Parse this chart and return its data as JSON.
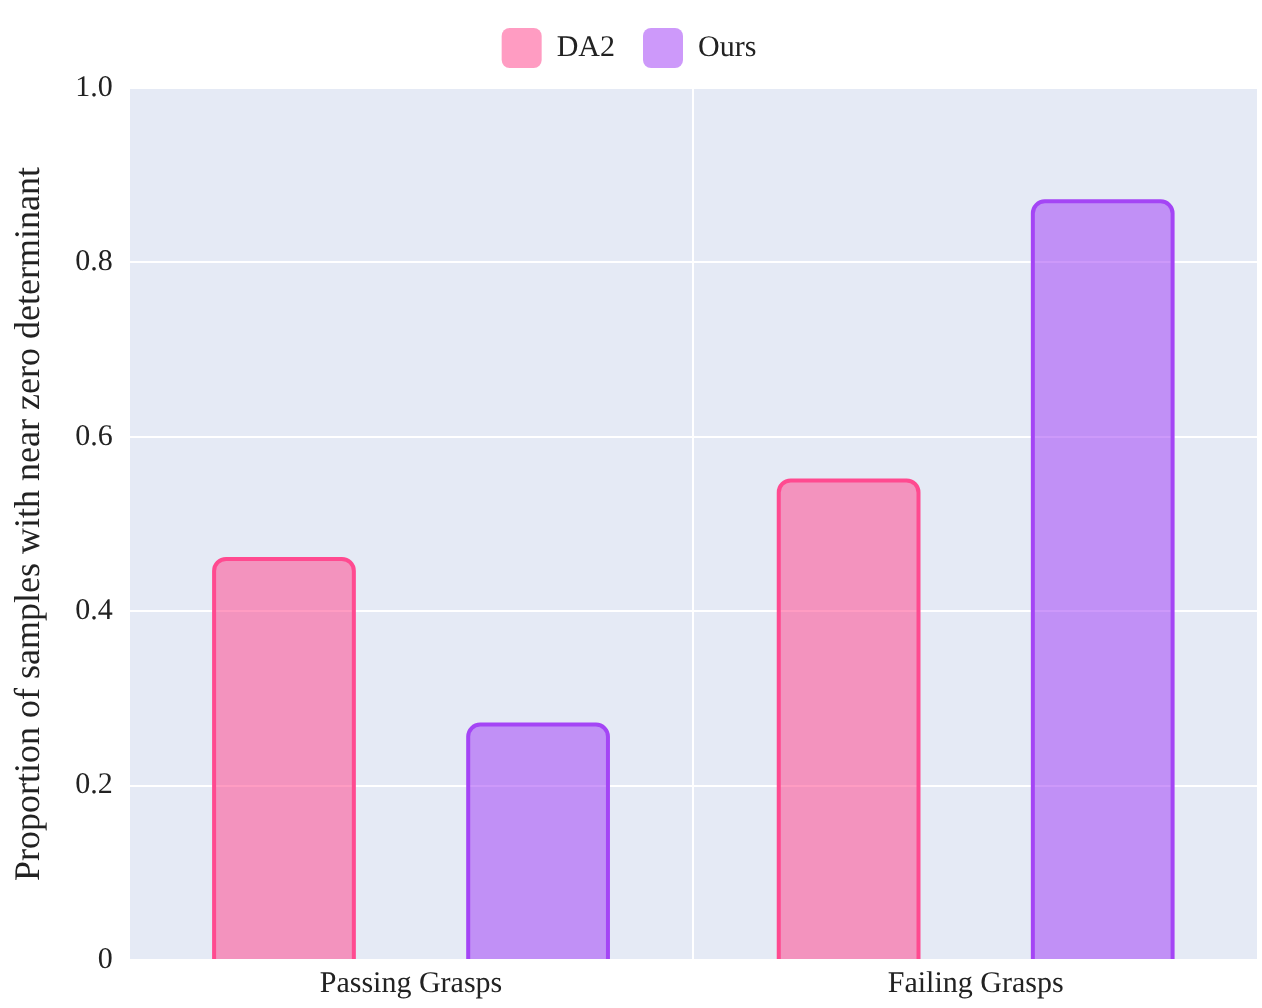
{
  "chart_data": {
    "type": "bar",
    "ylabel": "Proportion of samples with near zero determinant",
    "categories": [
      "Passing Grasps",
      "Failing Grasps"
    ],
    "series": [
      {
        "name": "DA2",
        "color": "#ff4a90",
        "values": [
          0.46,
          0.55
        ]
      },
      {
        "name": "Ours",
        "color": "#a445f5",
        "values": [
          0.27,
          0.87
        ]
      }
    ],
    "ylim": [
      0,
      1
    ],
    "yticks": [
      0,
      0.2,
      0.4,
      0.6,
      0.8,
      {
        "value": 1,
        "label": "1.0"
      }
    ],
    "grid": true,
    "legend": "top"
  }
}
